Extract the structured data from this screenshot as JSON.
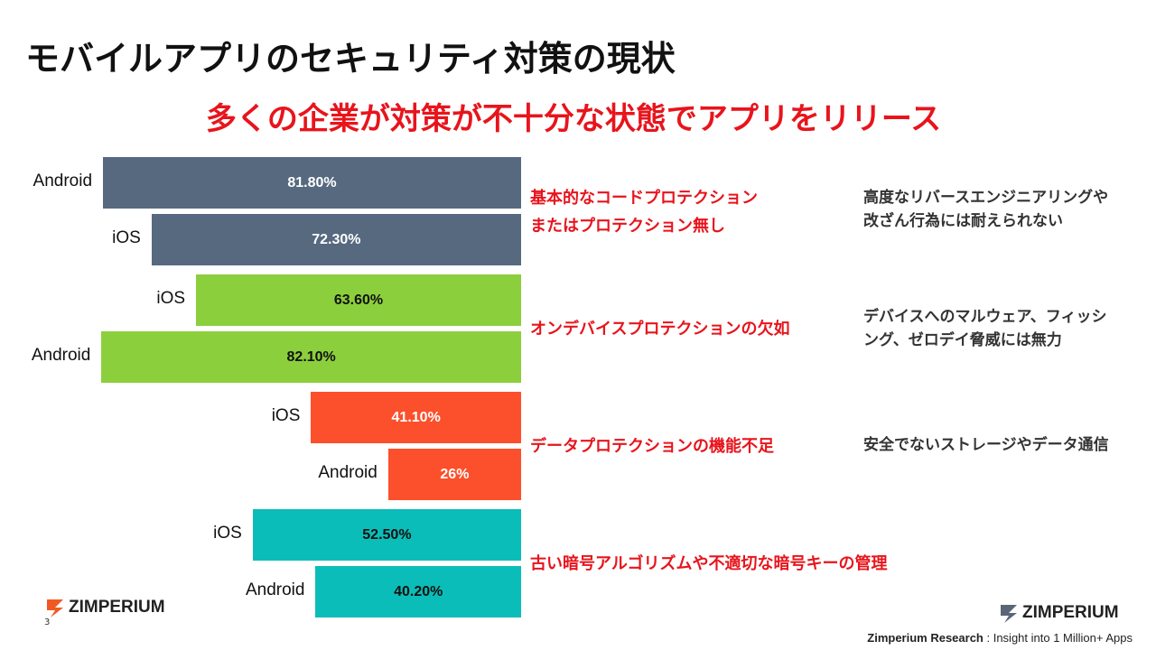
{
  "title": "モバイルアプリのセキュリティ対策の現状",
  "subtitle": "多くの企業が対策が不十分な状態でアプリをリリース",
  "chart_data": {
    "type": "bar",
    "orientation": "horizontal",
    "unit": "%",
    "groups": [
      {
        "category": "基本的なコードプロテクション\nまたはプロテクション無し",
        "description": "高度なリバースエンジニアリングや\n改ざん行為には耐えられない",
        "color": "#56697f",
        "text_color": "#ffffff",
        "bars": [
          {
            "platform": "Android",
            "value": 81.8,
            "label": "81.80%"
          },
          {
            "platform": "iOS",
            "value": 72.3,
            "label": "72.30%"
          }
        ]
      },
      {
        "category": "オンデバイスプロテクションの欠如",
        "description": "デバイスへのマルウェア、フィッシ\nング、ゼロデイ脅威には無力",
        "color": "#8ccf3c",
        "text_color": "#111111",
        "bars": [
          {
            "platform": "iOS",
            "value": 63.6,
            "label": "63.60%"
          },
          {
            "platform": "Android",
            "value": 82.1,
            "label": "82.10%"
          }
        ]
      },
      {
        "category": "データプロテクションの機能不足",
        "description": "安全でないストレージやデータ通信",
        "color": "#fc4f2b",
        "text_color": "#ffffff",
        "bars": [
          {
            "platform": "iOS",
            "value": 41.1,
            "label": "41.10%"
          },
          {
            "platform": "Android",
            "value": 26,
            "label": "26%"
          }
        ]
      },
      {
        "category": "古い暗号アルゴリズムや不適切な暗号キーの管理",
        "description": "",
        "color": "#0bbdb9",
        "text_color": "#111111",
        "bars": [
          {
            "platform": "iOS",
            "value": 52.5,
            "label": "52.50%"
          },
          {
            "platform": "Android",
            "value": 40.2,
            "label": "40.20%"
          }
        ]
      }
    ]
  },
  "footer": {
    "logo_text": "ZIMPERIUM",
    "page_number": "3",
    "source_bold": "Zimperium Research",
    "source_rest": " : Insight into 1 Million+ Apps"
  }
}
